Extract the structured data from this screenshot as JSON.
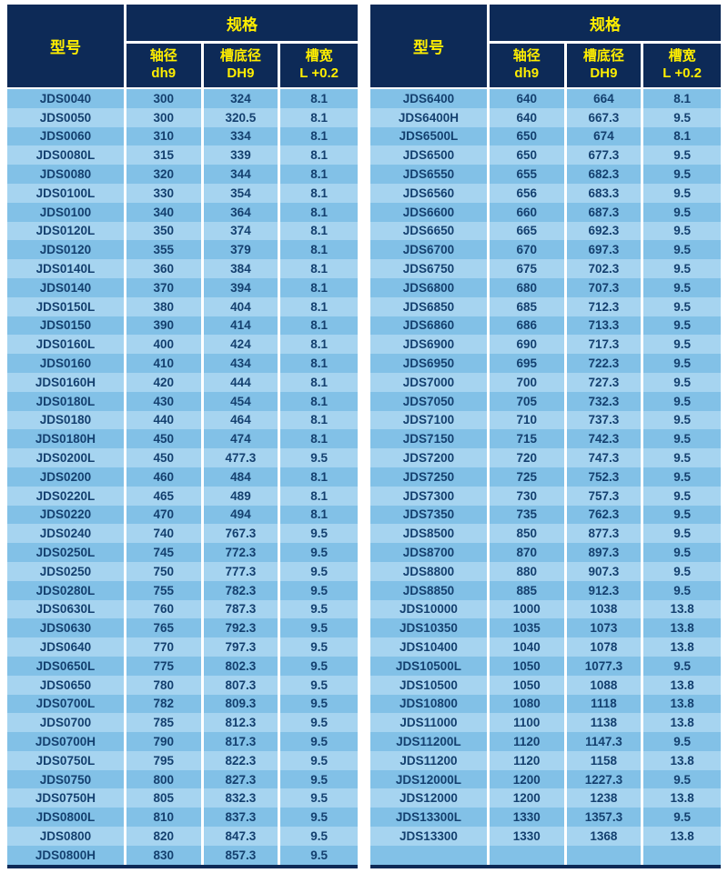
{
  "colors": {
    "header_bg": "#0d2a57",
    "header_text": "#ffee00",
    "row_dark": "#82c1e7",
    "row_light": "#a6d4f0",
    "cell_text": "#14406f",
    "separator": "#ffffff"
  },
  "header": {
    "model": "型号",
    "spec_group": "规格",
    "sub": [
      {
        "l1": "轴径",
        "l2": "dh9"
      },
      {
        "l1": "槽底径",
        "l2": "DH9"
      },
      {
        "l1": "槽宽",
        "l2": "L +0.2"
      }
    ]
  },
  "left_table": {
    "rows": [
      [
        "JDS0040",
        "300",
        "324",
        "8.1"
      ],
      [
        "JDS0050",
        "300",
        "320.5",
        "8.1"
      ],
      [
        "JDS0060",
        "310",
        "334",
        "8.1"
      ],
      [
        "JDS0080L",
        "315",
        "339",
        "8.1"
      ],
      [
        "JDS0080",
        "320",
        "344",
        "8.1"
      ],
      [
        "JDS0100L",
        "330",
        "354",
        "8.1"
      ],
      [
        "JDS0100",
        "340",
        "364",
        "8.1"
      ],
      [
        "JDS0120L",
        "350",
        "374",
        "8.1"
      ],
      [
        "JDS0120",
        "355",
        "379",
        "8.1"
      ],
      [
        "JDS0140L",
        "360",
        "384",
        "8.1"
      ],
      [
        "JDS0140",
        "370",
        "394",
        "8.1"
      ],
      [
        "JDS0150L",
        "380",
        "404",
        "8.1"
      ],
      [
        "JDS0150",
        "390",
        "414",
        "8.1"
      ],
      [
        "JDS0160L",
        "400",
        "424",
        "8.1"
      ],
      [
        "JDS0160",
        "410",
        "434",
        "8.1"
      ],
      [
        "JDS0160H",
        "420",
        "444",
        "8.1"
      ],
      [
        "JDS0180L",
        "430",
        "454",
        "8.1"
      ],
      [
        "JDS0180",
        "440",
        "464",
        "8.1"
      ],
      [
        "JDS0180H",
        "450",
        "474",
        "8.1"
      ],
      [
        "JDS0200L",
        "450",
        "477.3",
        "9.5"
      ],
      [
        "JDS0200",
        "460",
        "484",
        "8.1"
      ],
      [
        "JDS0220L",
        "465",
        "489",
        "8.1"
      ],
      [
        "JDS0220",
        "470",
        "494",
        "8.1"
      ],
      [
        "JDS0240",
        "740",
        "767.3",
        "9.5"
      ],
      [
        "JDS0250L",
        "745",
        "772.3",
        "9.5"
      ],
      [
        "JDS0250",
        "750",
        "777.3",
        "9.5"
      ],
      [
        "JDS0280L",
        "755",
        "782.3",
        "9.5"
      ],
      [
        "JDS0630L",
        "760",
        "787.3",
        "9.5"
      ],
      [
        "JDS0630",
        "765",
        "792.3",
        "9.5"
      ],
      [
        "JDS0640",
        "770",
        "797.3",
        "9.5"
      ],
      [
        "JDS0650L",
        "775",
        "802.3",
        "9.5"
      ],
      [
        "JDS0650",
        "780",
        "807.3",
        "9.5"
      ],
      [
        "JDS0700L",
        "782",
        "809.3",
        "9.5"
      ],
      [
        "JDS0700",
        "785",
        "812.3",
        "9.5"
      ],
      [
        "JDS0700H",
        "790",
        "817.3",
        "9.5"
      ],
      [
        "JDS0750L",
        "795",
        "822.3",
        "9.5"
      ],
      [
        "JDS0750",
        "800",
        "827.3",
        "9.5"
      ],
      [
        "JDS0750H",
        "805",
        "832.3",
        "9.5"
      ],
      [
        "JDS0800L",
        "810",
        "837.3",
        "9.5"
      ],
      [
        "JDS0800",
        "820",
        "847.3",
        "9.5"
      ],
      [
        "JDS0800H",
        "830",
        "857.3",
        "9.5"
      ]
    ]
  },
  "right_table": {
    "rows": [
      [
        "JDS6400",
        "640",
        "664",
        "8.1"
      ],
      [
        "JDS6400H",
        "640",
        "667.3",
        "9.5"
      ],
      [
        "JDS6500L",
        "650",
        "674",
        "8.1"
      ],
      [
        "JDS6500",
        "650",
        "677.3",
        "9.5"
      ],
      [
        "JDS6550",
        "655",
        "682.3",
        "9.5"
      ],
      [
        "JDS6560",
        "656",
        "683.3",
        "9.5"
      ],
      [
        "JDS6600",
        "660",
        "687.3",
        "9.5"
      ],
      [
        "JDS6650",
        "665",
        "692.3",
        "9.5"
      ],
      [
        "JDS6700",
        "670",
        "697.3",
        "9.5"
      ],
      [
        "JDS6750",
        "675",
        "702.3",
        "9.5"
      ],
      [
        "JDS6800",
        "680",
        "707.3",
        "9.5"
      ],
      [
        "JDS6850",
        "685",
        "712.3",
        "9.5"
      ],
      [
        "JDS6860",
        "686",
        "713.3",
        "9.5"
      ],
      [
        "JDS6900",
        "690",
        "717.3",
        "9.5"
      ],
      [
        "JDS6950",
        "695",
        "722.3",
        "9.5"
      ],
      [
        "JDS7000",
        "700",
        "727.3",
        "9.5"
      ],
      [
        "JDS7050",
        "705",
        "732.3",
        "9.5"
      ],
      [
        "JDS7100",
        "710",
        "737.3",
        "9.5"
      ],
      [
        "JDS7150",
        "715",
        "742.3",
        "9.5"
      ],
      [
        "JDS7200",
        "720",
        "747.3",
        "9.5"
      ],
      [
        "JDS7250",
        "725",
        "752.3",
        "9.5"
      ],
      [
        "JDS7300",
        "730",
        "757.3",
        "9.5"
      ],
      [
        "JDS7350",
        "735",
        "762.3",
        "9.5"
      ],
      [
        "JDS8500",
        "850",
        "877.3",
        "9.5"
      ],
      [
        "JDS8700",
        "870",
        "897.3",
        "9.5"
      ],
      [
        "JDS8800",
        "880",
        "907.3",
        "9.5"
      ],
      [
        "JDS8850",
        "885",
        "912.3",
        "9.5"
      ],
      [
        "JDS10000",
        "1000",
        "1038",
        "13.8"
      ],
      [
        "JDS10350",
        "1035",
        "1073",
        "13.8"
      ],
      [
        "JDS10400",
        "1040",
        "1078",
        "13.8"
      ],
      [
        "JDS10500L",
        "1050",
        "1077.3",
        "9.5"
      ],
      [
        "JDS10500",
        "1050",
        "1088",
        "13.8"
      ],
      [
        "JDS10800",
        "1080",
        "1118",
        "13.8"
      ],
      [
        "JDS11000",
        "1100",
        "1138",
        "13.8"
      ],
      [
        "JDS11200L",
        "1120",
        "1147.3",
        "9.5"
      ],
      [
        "JDS11200",
        "1120",
        "1158",
        "13.8"
      ],
      [
        "JDS12000L",
        "1200",
        "1227.3",
        "9.5"
      ],
      [
        "JDS12000",
        "1200",
        "1238",
        "13.8"
      ],
      [
        "JDS13300L",
        "1330",
        "1357.3",
        "9.5"
      ],
      [
        "JDS13300",
        "1330",
        "1368",
        "13.8"
      ],
      [
        "",
        "",
        "",
        ""
      ]
    ]
  }
}
